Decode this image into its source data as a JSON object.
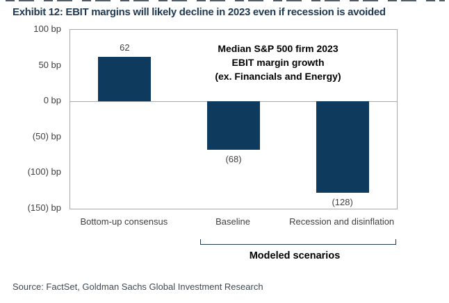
{
  "header": {
    "title": "Exhibit 12: EBIT margins will likely decline in 2023 even if recession is avoided"
  },
  "footer": {
    "source": "Source: FactSet, Goldman Sachs Global Investment Research"
  },
  "chart_data": {
    "type": "bar",
    "title": "Median S&P 500 firm 2023 EBIT margin growth (ex. Financials and Energy)",
    "annotation_lines": [
      "Median S&P 500 firm 2023",
      "EBIT margin growth",
      "(ex. Financials and Energy)"
    ],
    "categories": [
      "Bottom-up consensus",
      "Baseline",
      "Recession and disinflation"
    ],
    "values": [
      62,
      -68,
      -128
    ],
    "value_labels": [
      "62",
      "(68)",
      "(128)"
    ],
    "unit": "bp",
    "ylim": [
      -150,
      100
    ],
    "yticks": [
      100,
      50,
      0,
      -50,
      -100,
      -150
    ],
    "ytick_labels": [
      "100 bp",
      "50 bp",
      "0 bp",
      "(50) bp",
      "(100) bp",
      "(150) bp"
    ],
    "grid": false,
    "zero_line": true,
    "legend_position": "none",
    "group_bracket": {
      "label": "Modeled scenarios",
      "from_category": "Baseline",
      "to_category": "Recession and disinflation"
    },
    "colors": {
      "bar": "#0e3a5e",
      "axis_frame": "#a8a8a8",
      "tick_label": "#404040",
      "title_navy": "#203a54",
      "annotation": "#000000",
      "bracket": "#203a54",
      "source_text": "#3d4953"
    }
  }
}
